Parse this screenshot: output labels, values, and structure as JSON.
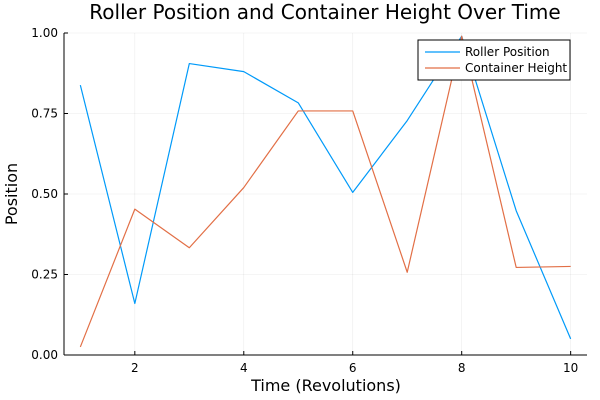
{
  "chart_data": {
    "type": "line",
    "title": "Roller Position and Container Height Over Time",
    "xlabel": "Time (Revolutions)",
    "ylabel": "Position",
    "xlim": [
      0.7,
      10.3
    ],
    "ylim": [
      0,
      1.0
    ],
    "xticks": [
      2,
      4,
      6,
      8,
      10
    ],
    "yticks": [
      0.0,
      0.25,
      0.5,
      0.75,
      1.0
    ],
    "xtick_labels": [
      "2",
      "4",
      "6",
      "8",
      "10"
    ],
    "ytick_labels": [
      "0.00",
      "0.25",
      "0.50",
      "0.75",
      "1.00"
    ],
    "grid": true,
    "legend_position": "top-right",
    "x": [
      1,
      2,
      3,
      4,
      5,
      6,
      7,
      8,
      9,
      10
    ],
    "series": [
      {
        "name": "Roller Position",
        "color": "#009af9",
        "values": [
          0.838,
          0.16,
          0.905,
          0.88,
          0.783,
          0.505,
          0.728,
          0.99,
          0.448,
          0.05
        ]
      },
      {
        "name": "Container Height",
        "color": "#e26f46",
        "values": [
          0.025,
          0.453,
          0.333,
          0.52,
          0.758,
          0.758,
          0.257,
          0.99,
          0.272,
          0.275
        ]
      }
    ]
  }
}
